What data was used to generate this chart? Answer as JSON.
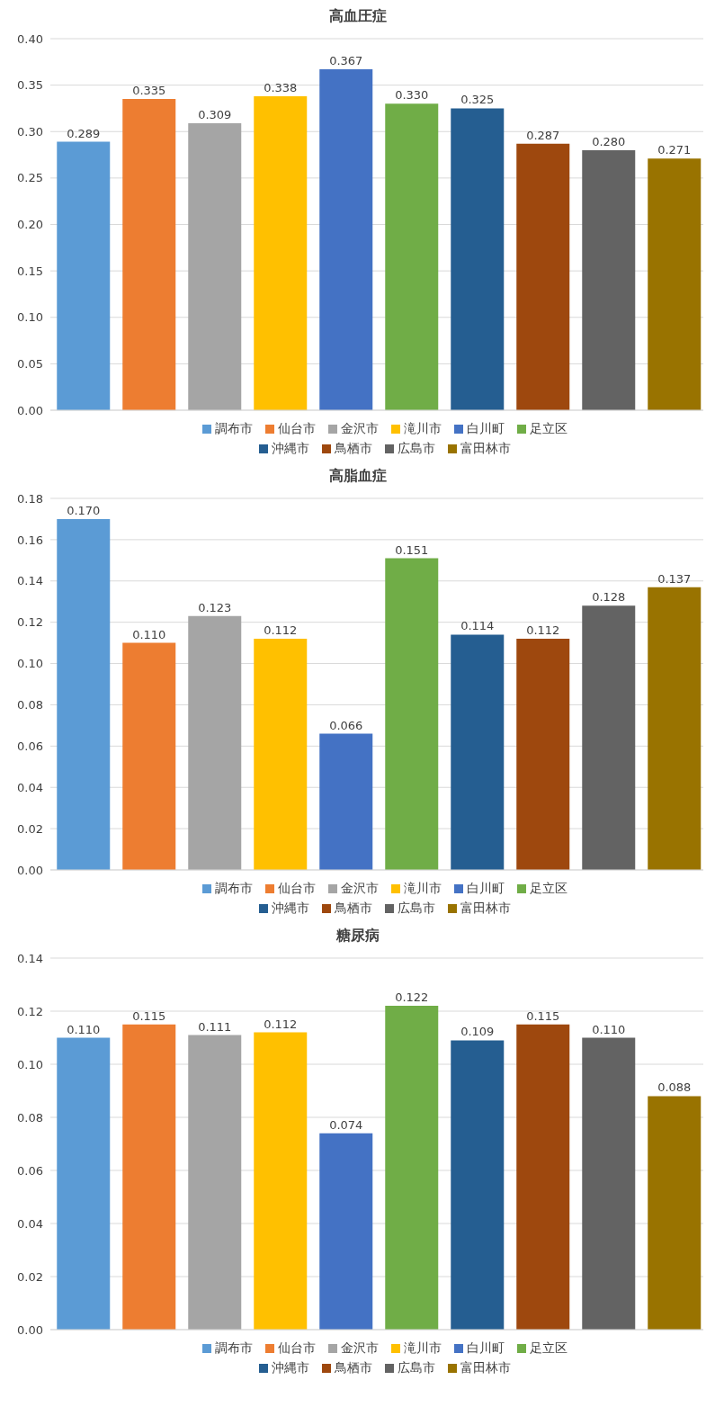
{
  "chart_data": [
    {
      "type": "bar",
      "title": "高血圧症",
      "categories": [
        null
      ],
      "ylim": [
        0,
        0.4
      ],
      "yticks": [
        {
          "value": 0,
          "label": "0.00"
        },
        {
          "value": 0.05,
          "label": "0.05"
        },
        {
          "value": 0.1,
          "label": "0.10"
        },
        {
          "value": 0.15,
          "label": "0.15"
        },
        {
          "value": 0.2,
          "label": "0.20"
        },
        {
          "value": 0.25,
          "label": "0.25"
        },
        {
          "value": 0.3,
          "label": "0.30"
        },
        {
          "value": 0.35,
          "label": "0.35"
        },
        {
          "value": 0.4,
          "label": "0.40"
        }
      ],
      "grid": "y",
      "legend": "bottom",
      "tick_labels": "y",
      "series": [
        {
          "name": "調布市",
          "color": "#5b9bd5",
          "values": [
            0.289
          ],
          "value_labels": [
            "0.289"
          ]
        },
        {
          "name": "仙台市",
          "color": "#ed7d31",
          "values": [
            0.335
          ],
          "value_labels": [
            "0.335"
          ]
        },
        {
          "name": "金沢市",
          "color": "#a5a5a5",
          "values": [
            0.309
          ],
          "value_labels": [
            "0.309"
          ]
        },
        {
          "name": "滝川市",
          "color": "#ffc000",
          "values": [
            0.338
          ],
          "value_labels": [
            "0.338"
          ]
        },
        {
          "name": "白川町",
          "color": "#4472c4",
          "values": [
            0.367
          ],
          "value_labels": [
            "0.367"
          ]
        },
        {
          "name": "足立区",
          "color": "#70ad47",
          "values": [
            0.33
          ],
          "value_labels": [
            "0.330"
          ]
        },
        {
          "name": "沖縄市",
          "color": "#255e91",
          "values": [
            0.325
          ],
          "value_labels": [
            "0.325"
          ]
        },
        {
          "name": "鳥栖市",
          "color": "#9e480e",
          "values": [
            0.287
          ],
          "value_labels": [
            "0.287"
          ]
        },
        {
          "name": "広島市",
          "color": "#636363",
          "values": [
            0.28
          ],
          "value_labels": [
            "0.280"
          ]
        },
        {
          "name": "富田林市",
          "color": "#997300",
          "values": [
            0.271
          ],
          "value_labels": [
            "0.271"
          ]
        }
      ]
    },
    {
      "type": "bar",
      "title": "高脂血症",
      "categories": [
        null
      ],
      "ylim": [
        0,
        0.18
      ],
      "yticks": [
        {
          "value": 0,
          "label": "0.00"
        },
        {
          "value": 0.02,
          "label": "0.02"
        },
        {
          "value": 0.04,
          "label": "0.04"
        },
        {
          "value": 0.06,
          "label": "0.06"
        },
        {
          "value": 0.08,
          "label": "0.08"
        },
        {
          "value": 0.1,
          "label": "0.10"
        },
        {
          "value": 0.12,
          "label": "0.12"
        },
        {
          "value": 0.14,
          "label": "0.14"
        },
        {
          "value": 0.16,
          "label": "0.16"
        },
        {
          "value": 0.18,
          "label": "0.18"
        }
      ],
      "grid": "y",
      "legend": "bottom",
      "tick_labels": "y",
      "series": [
        {
          "name": "調布市",
          "color": "#5b9bd5",
          "values": [
            0.17
          ],
          "value_labels": [
            "0.170"
          ]
        },
        {
          "name": "仙台市",
          "color": "#ed7d31",
          "values": [
            0.11
          ],
          "value_labels": [
            "0.110"
          ]
        },
        {
          "name": "金沢市",
          "color": "#a5a5a5",
          "values": [
            0.123
          ],
          "value_labels": [
            "0.123"
          ]
        },
        {
          "name": "滝川市",
          "color": "#ffc000",
          "values": [
            0.112
          ],
          "value_labels": [
            "0.112"
          ]
        },
        {
          "name": "白川町",
          "color": "#4472c4",
          "values": [
            0.066
          ],
          "value_labels": [
            "0.066"
          ]
        },
        {
          "name": "足立区",
          "color": "#70ad47",
          "values": [
            0.151
          ],
          "value_labels": [
            "0.151"
          ]
        },
        {
          "name": "沖縄市",
          "color": "#255e91",
          "values": [
            0.114
          ],
          "value_labels": [
            "0.114"
          ]
        },
        {
          "name": "鳥栖市",
          "color": "#9e480e",
          "values": [
            0.112
          ],
          "value_labels": [
            "0.112"
          ]
        },
        {
          "name": "広島市",
          "color": "#636363",
          "values": [
            0.128
          ],
          "value_labels": [
            "0.128"
          ]
        },
        {
          "name": "富田林市",
          "color": "#997300",
          "values": [
            0.137
          ],
          "value_labels": [
            "0.137"
          ]
        }
      ]
    },
    {
      "type": "bar",
      "title": "糖尿病",
      "categories": [
        null
      ],
      "ylim": [
        0,
        0.14
      ],
      "yticks": [
        {
          "value": 0,
          "label": "0.00"
        },
        {
          "value": 0.02,
          "label": "0.02"
        },
        {
          "value": 0.04,
          "label": "0.04"
        },
        {
          "value": 0.06,
          "label": "0.06"
        },
        {
          "value": 0.08,
          "label": "0.08"
        },
        {
          "value": 0.1,
          "label": "0.10"
        },
        {
          "value": 0.12,
          "label": "0.12"
        },
        {
          "value": 0.14,
          "label": "0.14"
        }
      ],
      "grid": "y",
      "legend": "bottom",
      "tick_labels": "y",
      "series": [
        {
          "name": "調布市",
          "color": "#5b9bd5",
          "values": [
            0.11
          ],
          "value_labels": [
            "0.110"
          ]
        },
        {
          "name": "仙台市",
          "color": "#ed7d31",
          "values": [
            0.115
          ],
          "value_labels": [
            "0.115"
          ]
        },
        {
          "name": "金沢市",
          "color": "#a5a5a5",
          "values": [
            0.111
          ],
          "value_labels": [
            "0.111"
          ]
        },
        {
          "name": "滝川市",
          "color": "#ffc000",
          "values": [
            0.112
          ],
          "value_labels": [
            "0.112"
          ]
        },
        {
          "name": "白川町",
          "color": "#4472c4",
          "values": [
            0.074
          ],
          "value_labels": [
            "0.074"
          ]
        },
        {
          "name": "足立区",
          "color": "#70ad47",
          "values": [
            0.122
          ],
          "value_labels": [
            "0.122"
          ]
        },
        {
          "name": "沖縄市",
          "color": "#255e91",
          "values": [
            0.109
          ],
          "value_labels": [
            "0.109"
          ]
        },
        {
          "name": "鳥栖市",
          "color": "#9e480e",
          "values": [
            0.115
          ],
          "value_labels": [
            "0.115"
          ]
        },
        {
          "name": "広島市",
          "color": "#636363",
          "values": [
            0.11
          ],
          "value_labels": [
            "0.110"
          ]
        },
        {
          "name": "富田林市",
          "color": "#997300",
          "values": [
            0.088
          ],
          "value_labels": [
            "0.088"
          ]
        }
      ]
    }
  ]
}
